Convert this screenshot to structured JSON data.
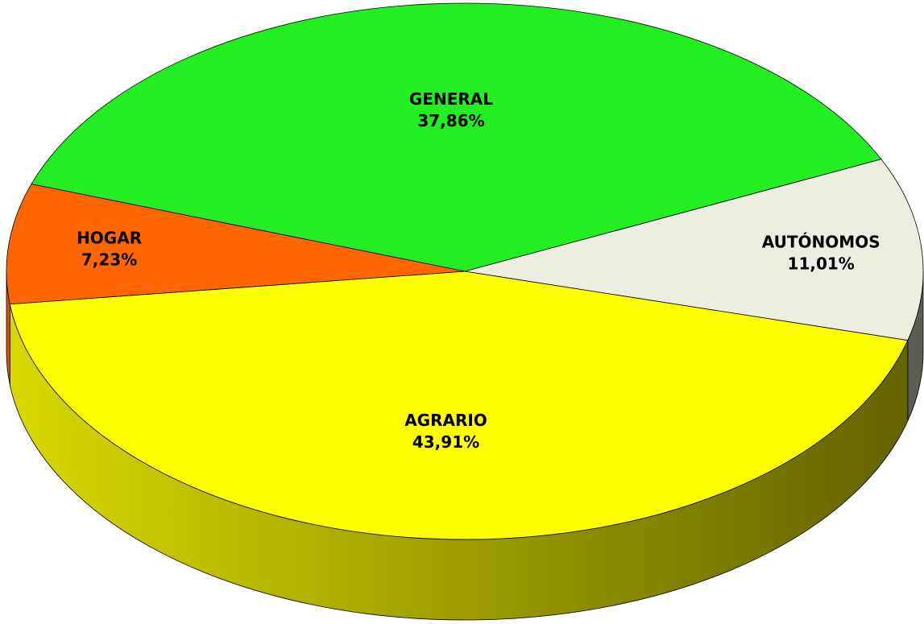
{
  "chart_data": {
    "type": "pie",
    "categories": [
      "GENERAL",
      "AUTÓNOMOS",
      "AGRARIO",
      "HOGAR"
    ],
    "values": [
      37.86,
      11.01,
      43.91,
      7.23
    ],
    "value_labels": [
      "37,86%",
      "11,01%",
      "43,91%",
      "7,23%"
    ],
    "colors": [
      "#22ee22",
      "#ecefdf",
      "#ffff00",
      "#ff6600"
    ]
  }
}
